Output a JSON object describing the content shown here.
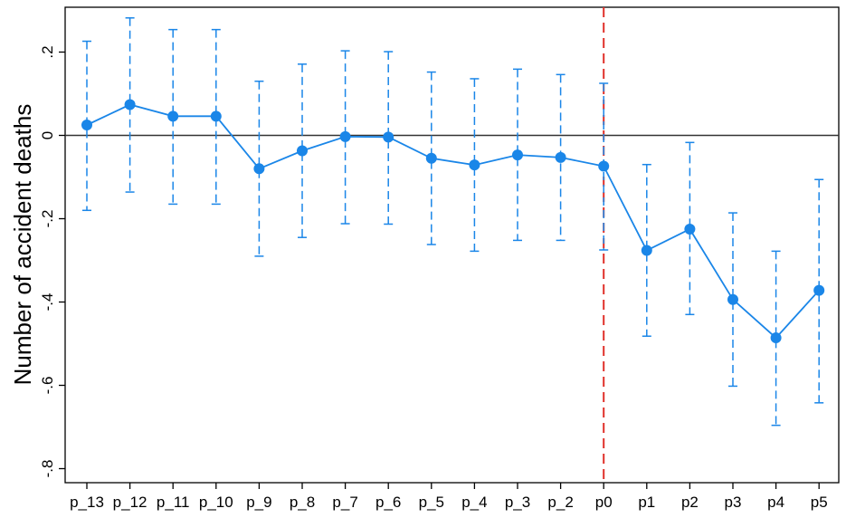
{
  "chart_data": {
    "type": "line",
    "title": "",
    "xlabel": "",
    "ylabel": "Number of accident deaths",
    "categories": [
      "p_13",
      "p_12",
      "p_11",
      "p_10",
      "p_9",
      "p_8",
      "p_7",
      "p_6",
      "p_5",
      "p_4",
      "p_3",
      "p_2",
      "p0",
      "p1",
      "p2",
      "p3",
      "p4",
      "p5"
    ],
    "yticks": [
      {
        "value": 0.2,
        "label": ".2"
      },
      {
        "value": 0,
        "label": "0"
      },
      {
        "value": -0.2,
        "label": "-.2"
      },
      {
        "value": -0.4,
        "label": "-.4"
      },
      {
        "value": -0.6,
        "label": "-.6"
      },
      {
        "value": -0.8,
        "label": "-.8"
      }
    ],
    "ylim": [
      -0.82,
      0.31
    ],
    "series": [
      {
        "values": [
          0.025,
          0.074,
          0.046,
          0.046,
          -0.08,
          -0.037,
          -0.003,
          -0.004,
          -0.055,
          -0.071,
          -0.047,
          -0.053,
          -0.074,
          -0.276,
          -0.225,
          -0.394,
          -0.486,
          -0.372
        ],
        "ci_low": [
          -0.18,
          -0.136,
          -0.165,
          -0.165,
          -0.29,
          -0.245,
          -0.212,
          -0.213,
          -0.262,
          -0.278,
          -0.252,
          -0.252,
          -0.275,
          -0.482,
          -0.43,
          -0.602,
          -0.696,
          -0.642
        ],
        "ci_high": [
          0.226,
          0.282,
          0.254,
          0.254,
          0.13,
          0.171,
          0.203,
          0.201,
          0.152,
          0.136,
          0.159,
          0.146,
          0.125,
          -0.07,
          -0.017,
          -0.186,
          -0.278,
          -0.106
        ]
      }
    ],
    "reference_lines": {
      "horizontal_y": 0,
      "vertical_x_category": "p0"
    },
    "grid": false,
    "legend": "none"
  },
  "colors": {
    "series": "#1a86e8",
    "zero_line": "#333333",
    "event_line": "#e0302a",
    "axis": "#000000"
  }
}
